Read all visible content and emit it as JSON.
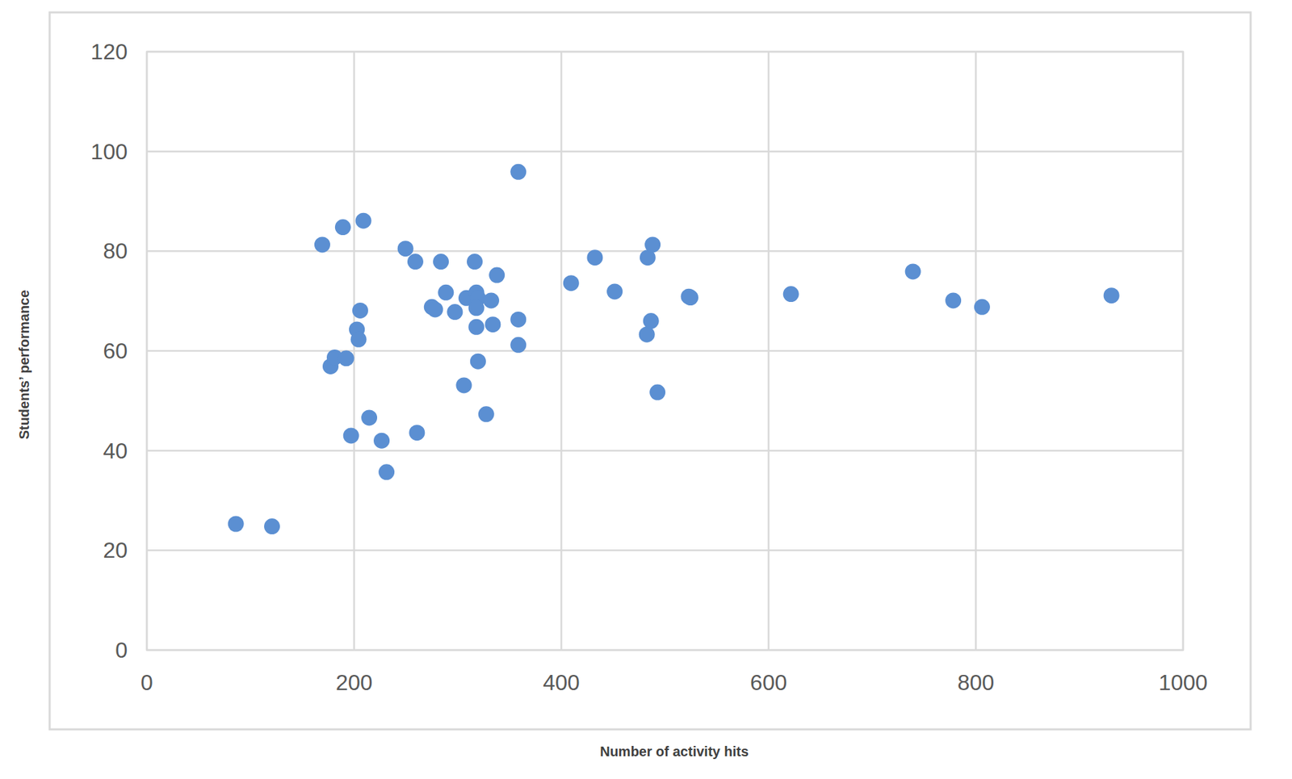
{
  "chart_data": {
    "type": "scatter",
    "x_label": "Number of activity hits",
    "y_label": "Students’ performance",
    "x": [
      85.9,
      120.8,
      169.3,
      189.2,
      209,
      177.3,
      181.3,
      192.4,
      205.9,
      202.7,
      204.3,
      197.1,
      214.6,
      226.6,
      231.3,
      249.6,
      259.1,
      260.7,
      283.8,
      288.6,
      275,
      278.2,
      297.3,
      306,
      308.4,
      316.4,
      318,
      319.6,
      318,
      318,
      319.6,
      332.3,
      333.9,
      337.8,
      327.5,
      358.5,
      358.5,
      358.5,
      409.4,
      432.4,
      451.5,
      483.3,
      488.1,
      482.5,
      486.5,
      492.8,
      523,
      524.6,
      621.6,
      739.3,
      778.2,
      806,
      930.9
    ],
    "values": [
      25.3,
      24.8,
      81.3,
      84.8,
      86.1,
      56.9,
      58.7,
      58.5,
      68.1,
      64.3,
      62.3,
      43,
      46.6,
      42,
      35.7,
      80.5,
      77.9,
      43.6,
      77.9,
      71.7,
      68.8,
      68.3,
      67.8,
      53.1,
      70.6,
      77.9,
      71.7,
      70.6,
      68.6,
      64.8,
      57.9,
      70.1,
      65.3,
      75.2,
      47.3,
      95.9,
      66.3,
      61.2,
      73.6,
      78.7,
      71.9,
      78.7,
      81.3,
      63.3,
      66,
      51.7,
      70.9,
      70.7,
      71.4,
      75.9,
      70.1,
      68.8,
      71.1
    ],
    "color": "#5b8fd2",
    "marker": "circle",
    "xlim": [
      0,
      1000
    ],
    "xticks": [
      0,
      200,
      400,
      600,
      800,
      1000
    ],
    "ylim": [
      0,
      120
    ],
    "yticks": [
      0,
      20,
      40,
      60,
      80,
      100,
      120
    ],
    "grid": true
  }
}
